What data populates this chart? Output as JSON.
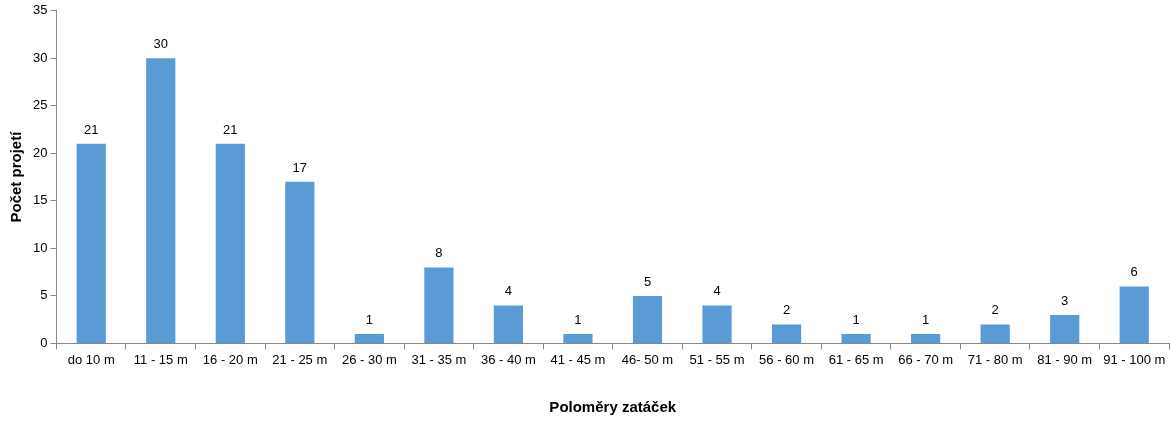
{
  "chart_data": {
    "type": "bar",
    "xlabel": "Poloměry zatáček",
    "ylabel": "Počet projetí",
    "categories": [
      "do 10 m",
      "11 - 15 m",
      "16 - 20 m",
      "21 - 25 m",
      "26 - 30 m",
      "31 - 35 m",
      "36 - 40 m",
      "41 - 45 m",
      "46- 50 m",
      "51 - 55 m",
      "56 - 60 m",
      "61 - 65 m",
      "66 - 70 m",
      "71 - 80 m",
      "81 - 90 m",
      "91 - 100 m"
    ],
    "values": [
      21,
      30,
      21,
      17,
      1,
      8,
      4,
      1,
      5,
      4,
      2,
      1,
      1,
      2,
      3,
      6
    ],
    "color": "#5b9bd5",
    "ylim": [
      0,
      35
    ],
    "yticks": [
      0,
      5,
      10,
      15,
      20,
      25,
      30,
      35
    ],
    "grid": false,
    "legend": false,
    "data_labels": true
  }
}
